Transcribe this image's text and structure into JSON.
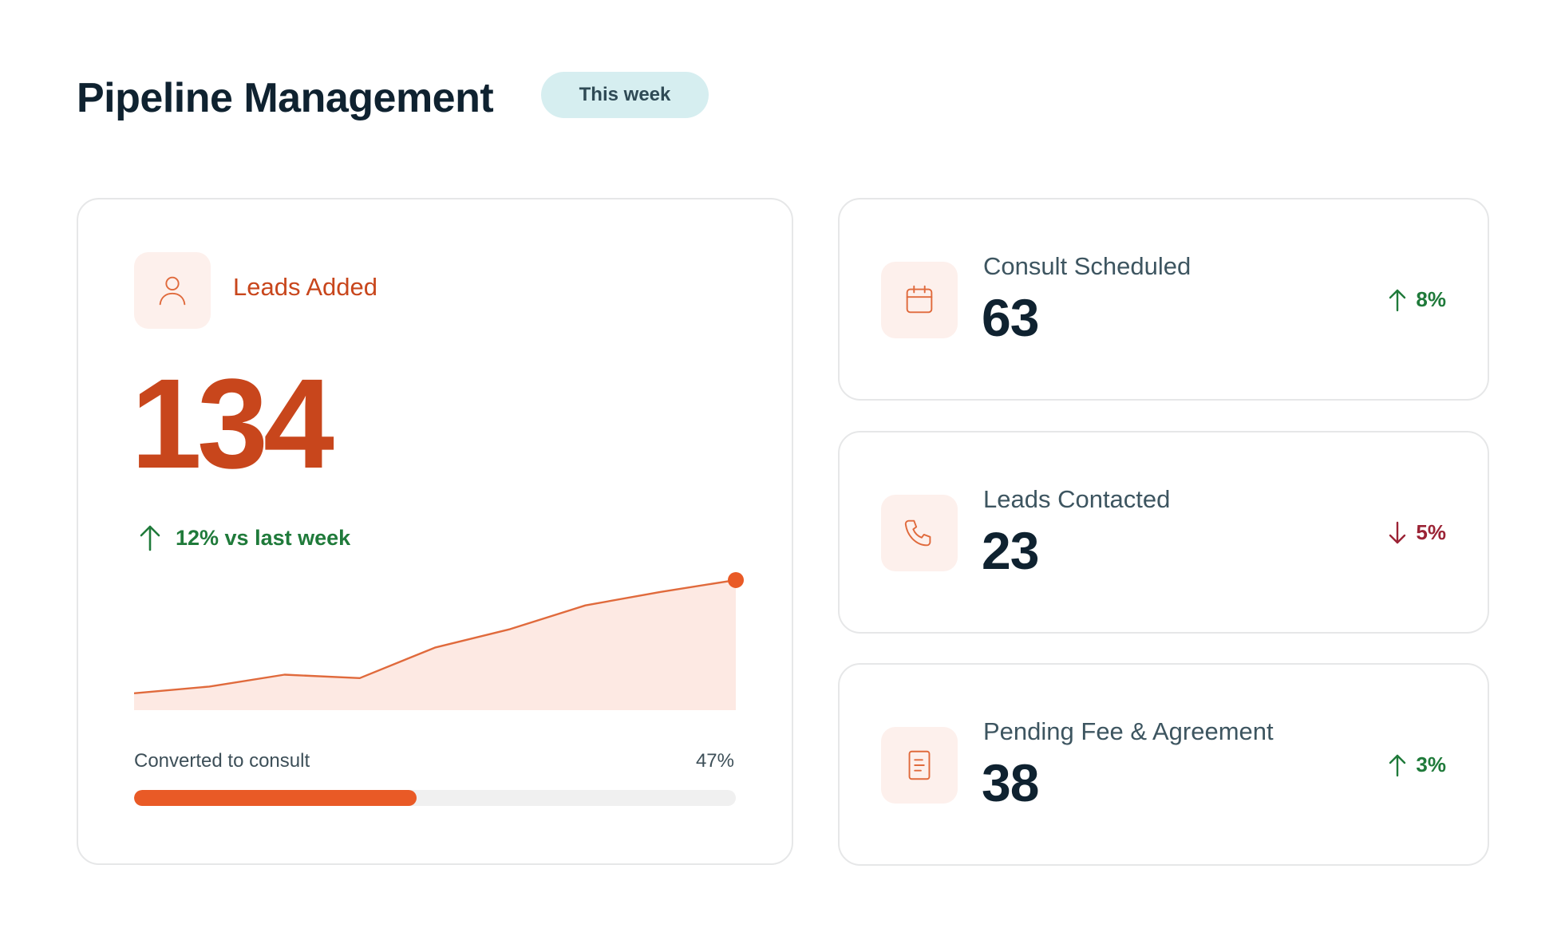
{
  "header": {
    "title": "Pipeline Management",
    "period_label": "This week"
  },
  "main_card": {
    "icon": "user-icon",
    "label": "Leads Added",
    "value": "134",
    "trend_text": "12% vs last week",
    "trend_direction": "up",
    "conversion_label": "Converted to consult",
    "conversion_value": "47%",
    "conversion_fraction": 0.47
  },
  "chart_data": {
    "type": "area",
    "series": [
      {
        "values": [
          10,
          14,
          21,
          19,
          37,
          48,
          62,
          70,
          77
        ]
      }
    ],
    "ylim": [
      0,
      85
    ],
    "grid": false,
    "last_point_marker": true
  },
  "metrics": [
    {
      "icon": "calendar-icon",
      "label": "Consult Scheduled",
      "value": "63",
      "trend": "8%",
      "direction": "up"
    },
    {
      "icon": "phone-icon",
      "label": "Leads Contacted",
      "value": "23",
      "trend": "5%",
      "direction": "down"
    },
    {
      "icon": "document-icon",
      "label": "Pending Fee & Agreement",
      "value": "38",
      "trend": "3%",
      "direction": "up"
    }
  ],
  "colors": {
    "accent": "#e95a26",
    "accent_dark": "#c8461c",
    "area_fill": "#fde9e3",
    "positive": "#1f7a3a",
    "negative": "#9b2335",
    "pill_bg": "#d6eef0"
  }
}
